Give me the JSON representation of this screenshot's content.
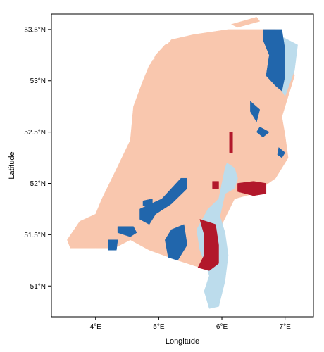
{
  "map": {
    "xlabel": "Longitude",
    "ylabel": "Latitude",
    "xlim": [
      3.3,
      7.45
    ],
    "ylim": [
      50.7,
      53.65
    ],
    "x_ticks": [
      {
        "value": 4,
        "label": "4°E"
      },
      {
        "value": 5,
        "label": "5°E"
      },
      {
        "value": 6,
        "label": "6°E"
      },
      {
        "value": 7,
        "label": "7°E"
      }
    ],
    "y_ticks": [
      {
        "value": 51.0,
        "label": "51°N"
      },
      {
        "value": 51.5,
        "label": "51.5°N"
      },
      {
        "value": 52.0,
        "label": "52°N"
      },
      {
        "value": 52.5,
        "label": "52.5°N"
      },
      {
        "value": 53.0,
        "label": "53°N"
      },
      {
        "value": 53.5,
        "label": "53.5°N"
      }
    ],
    "classes": [
      {
        "id": "salmon",
        "color": "#f9c7ae"
      },
      {
        "id": "dark-blue",
        "color": "#2166ac"
      },
      {
        "id": "light-blue",
        "color": "#bcdcec"
      },
      {
        "id": "dark-red",
        "color": "#b2182b"
      }
    ],
    "regions": [
      {
        "class": "salmon",
        "points": [
          [
            4.0,
            51.37
          ],
          [
            3.6,
            51.37
          ],
          [
            3.55,
            51.45
          ],
          [
            3.75,
            51.63
          ],
          [
            4.0,
            51.7
          ],
          [
            4.1,
            51.85
          ],
          [
            4.3,
            52.1
          ],
          [
            4.55,
            52.42
          ],
          [
            4.6,
            52.75
          ],
          [
            4.75,
            53.0
          ],
          [
            4.85,
            53.15
          ],
          [
            5.2,
            53.4
          ],
          [
            5.55,
            53.45
          ],
          [
            6.1,
            53.5
          ],
          [
            6.85,
            53.5
          ],
          [
            7.05,
            53.3
          ],
          [
            7.15,
            53.05
          ],
          [
            7.0,
            52.75
          ],
          [
            6.95,
            52.65
          ],
          [
            7.0,
            52.47
          ],
          [
            7.05,
            52.25
          ],
          [
            6.85,
            52.05
          ],
          [
            6.5,
            51.9
          ],
          [
            6.2,
            51.85
          ],
          [
            6.0,
            51.6
          ],
          [
            5.95,
            51.3
          ],
          [
            5.8,
            51.15
          ],
          [
            5.3,
            51.25
          ],
          [
            4.85,
            51.35
          ],
          [
            4.55,
            51.45
          ],
          [
            4.3,
            51.37
          ]
        ]
      },
      {
        "class": "salmon",
        "points": [
          [
            4.8,
            53.05
          ],
          [
            4.9,
            53.2
          ],
          [
            5.05,
            53.27
          ],
          [
            5.3,
            53.4
          ],
          [
            5.1,
            53.35
          ],
          [
            4.95,
            53.25
          ]
        ]
      },
      {
        "class": "salmon",
        "points": [
          [
            6.15,
            53.55
          ],
          [
            6.55,
            53.62
          ],
          [
            6.6,
            53.58
          ],
          [
            6.25,
            53.52
          ]
        ]
      },
      {
        "class": "light-blue",
        "points": [
          [
            6.98,
            53.42
          ],
          [
            7.2,
            53.35
          ],
          [
            7.15,
            53.1
          ],
          [
            7.0,
            52.85
          ],
          [
            6.85,
            53.0
          ],
          [
            6.9,
            53.25
          ]
        ]
      },
      {
        "class": "light-blue",
        "points": [
          [
            6.08,
            52.2
          ],
          [
            6.2,
            52.15
          ],
          [
            6.25,
            52.05
          ],
          [
            6.2,
            51.95
          ],
          [
            6.05,
            51.9
          ],
          [
            5.97,
            51.68
          ],
          [
            6.05,
            51.52
          ],
          [
            6.1,
            51.3
          ],
          [
            6.05,
            51.05
          ],
          [
            5.95,
            50.8
          ],
          [
            5.8,
            50.78
          ],
          [
            5.72,
            50.95
          ],
          [
            5.8,
            51.1
          ],
          [
            5.75,
            51.2
          ],
          [
            5.65,
            51.35
          ],
          [
            5.6,
            51.55
          ],
          [
            5.78,
            51.75
          ],
          [
            5.95,
            51.85
          ],
          [
            6.0,
            52.0
          ],
          [
            6.05,
            52.15
          ]
        ]
      },
      {
        "class": "dark-blue",
        "points": [
          [
            6.65,
            53.5
          ],
          [
            6.95,
            53.5
          ],
          [
            7.0,
            53.3
          ],
          [
            7.0,
            53.05
          ],
          [
            6.95,
            52.9
          ],
          [
            6.85,
            52.95
          ],
          [
            6.7,
            53.05
          ],
          [
            6.75,
            53.25
          ],
          [
            6.65,
            53.4
          ]
        ]
      },
      {
        "class": "dark-blue",
        "points": [
          [
            6.45,
            52.8
          ],
          [
            6.6,
            52.72
          ],
          [
            6.55,
            52.6
          ],
          [
            6.45,
            52.7
          ]
        ]
      },
      {
        "class": "dark-blue",
        "points": [
          [
            6.6,
            52.55
          ],
          [
            6.75,
            52.5
          ],
          [
            6.65,
            52.45
          ],
          [
            6.55,
            52.5
          ]
        ]
      },
      {
        "class": "dark-blue",
        "points": [
          [
            6.9,
            52.35
          ],
          [
            7.0,
            52.3
          ],
          [
            6.95,
            52.25
          ],
          [
            6.88,
            52.28
          ]
        ]
      },
      {
        "class": "dark-blue",
        "points": [
          [
            4.7,
            51.75
          ],
          [
            5.05,
            51.85
          ],
          [
            5.35,
            52.05
          ],
          [
            5.45,
            52.05
          ],
          [
            5.45,
            51.95
          ],
          [
            5.2,
            51.8
          ],
          [
            4.95,
            51.7
          ],
          [
            4.85,
            51.6
          ],
          [
            4.7,
            51.65
          ]
        ]
      },
      {
        "class": "dark-blue",
        "points": [
          [
            5.2,
            51.55
          ],
          [
            5.4,
            51.6
          ],
          [
            5.45,
            51.4
          ],
          [
            5.3,
            51.25
          ],
          [
            5.15,
            51.28
          ],
          [
            5.1,
            51.45
          ]
        ]
      },
      {
        "class": "dark-blue",
        "points": [
          [
            4.35,
            51.58
          ],
          [
            4.6,
            51.58
          ],
          [
            4.65,
            51.52
          ],
          [
            4.55,
            51.48
          ],
          [
            4.35,
            51.52
          ]
        ]
      },
      {
        "class": "dark-blue",
        "points": [
          [
            4.2,
            51.45
          ],
          [
            4.35,
            51.45
          ],
          [
            4.33,
            51.35
          ],
          [
            4.2,
            51.35
          ]
        ]
      },
      {
        "class": "dark-blue",
        "points": [
          [
            4.75,
            51.83
          ],
          [
            4.9,
            51.85
          ],
          [
            4.9,
            51.78
          ],
          [
            4.75,
            51.78
          ]
        ]
      },
      {
        "class": "dark-red",
        "points": [
          [
            6.25,
            52.0
          ],
          [
            6.5,
            52.02
          ],
          [
            6.7,
            52.0
          ],
          [
            6.7,
            51.9
          ],
          [
            6.5,
            51.88
          ],
          [
            6.25,
            51.92
          ]
        ]
      },
      {
        "class": "dark-red",
        "points": [
          [
            5.65,
            51.65
          ],
          [
            5.9,
            51.6
          ],
          [
            5.95,
            51.4
          ],
          [
            5.95,
            51.22
          ],
          [
            5.8,
            51.15
          ],
          [
            5.62,
            51.18
          ],
          [
            5.72,
            51.3
          ],
          [
            5.72,
            51.5
          ]
        ]
      },
      {
        "class": "dark-red",
        "points": [
          [
            6.12,
            52.5
          ],
          [
            6.17,
            52.5
          ],
          [
            6.17,
            52.3
          ],
          [
            6.12,
            52.3
          ]
        ]
      },
      {
        "class": "dark-red",
        "points": [
          [
            5.85,
            52.02
          ],
          [
            5.95,
            52.02
          ],
          [
            5.95,
            51.95
          ],
          [
            5.85,
            51.95
          ]
        ]
      }
    ]
  }
}
